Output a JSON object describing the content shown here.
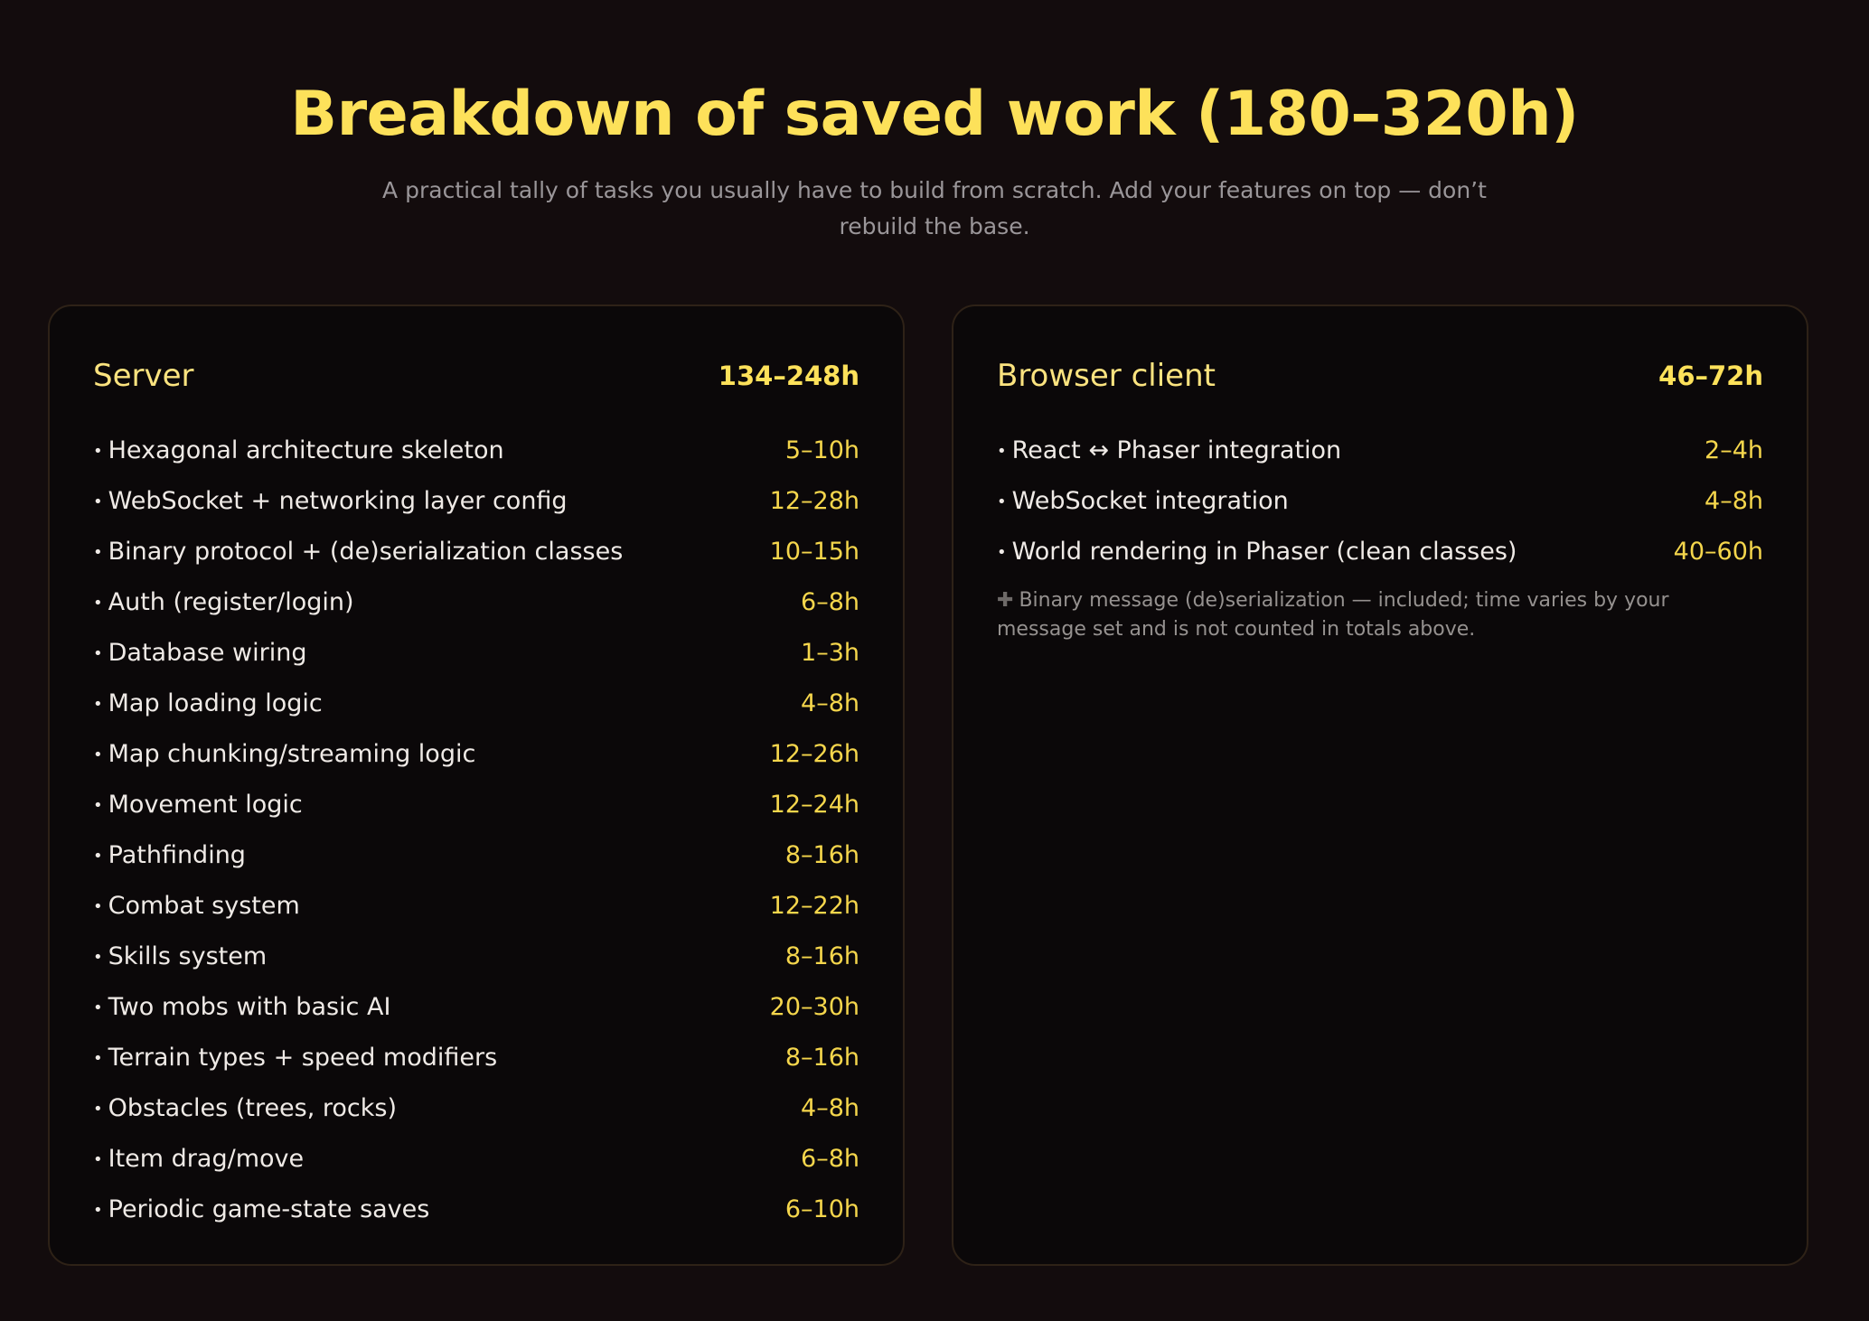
{
  "header": {
    "title": "Breakdown of saved work (180–320h)",
    "subtitle": "A practical tally of tasks you usually have to build from scratch. Add your features on top — don’t rebuild the base."
  },
  "server": {
    "name": "Server",
    "total": "134–248h",
    "items": [
      {
        "label": "Hexagonal architecture skeleton",
        "hours": "5–10h"
      },
      {
        "label": "WebSocket + networking layer config",
        "hours": "12–28h"
      },
      {
        "label": "Binary protocol + (de)serialization classes",
        "hours": "10–15h"
      },
      {
        "label": "Auth (register/login)",
        "hours": "6–8h"
      },
      {
        "label": "Database wiring",
        "hours": "1–3h"
      },
      {
        "label": "Map loading logic",
        "hours": "4–8h"
      },
      {
        "label": "Map chunking/streaming logic",
        "hours": "12–26h"
      },
      {
        "label": "Movement logic",
        "hours": "12–24h"
      },
      {
        "label": "Pathfinding",
        "hours": "8–16h"
      },
      {
        "label": "Combat system",
        "hours": "12–22h"
      },
      {
        "label": "Skills system",
        "hours": "8–16h"
      },
      {
        "label": "Two mobs with basic AI",
        "hours": "20–30h"
      },
      {
        "label": "Terrain types + speed modifiers",
        "hours": "8–16h"
      },
      {
        "label": "Obstacles (trees, rocks)",
        "hours": "4–8h"
      },
      {
        "label": "Item drag/move",
        "hours": "6–8h"
      },
      {
        "label": "Periodic game-state saves",
        "hours": "6–10h"
      }
    ]
  },
  "client": {
    "name": "Browser client",
    "total": "46–72h",
    "items": [
      {
        "label": "React ↔ Phaser integration",
        "hours": "2–4h"
      },
      {
        "label": "WebSocket integration",
        "hours": "4–8h"
      },
      {
        "label": "World rendering in Phaser (clean classes)",
        "hours": "40–60h"
      }
    ],
    "note_icon": "plus-icon",
    "note_icon_glyph": "✚",
    "note": "Binary message (de)serialization — included; time varies by your message set and is not counted in totals above."
  },
  "colors": {
    "background": "#130c0d",
    "card": "#0b0809",
    "accent": "#fde15a",
    "text": "#efeae6",
    "muted": "#9a9699"
  }
}
